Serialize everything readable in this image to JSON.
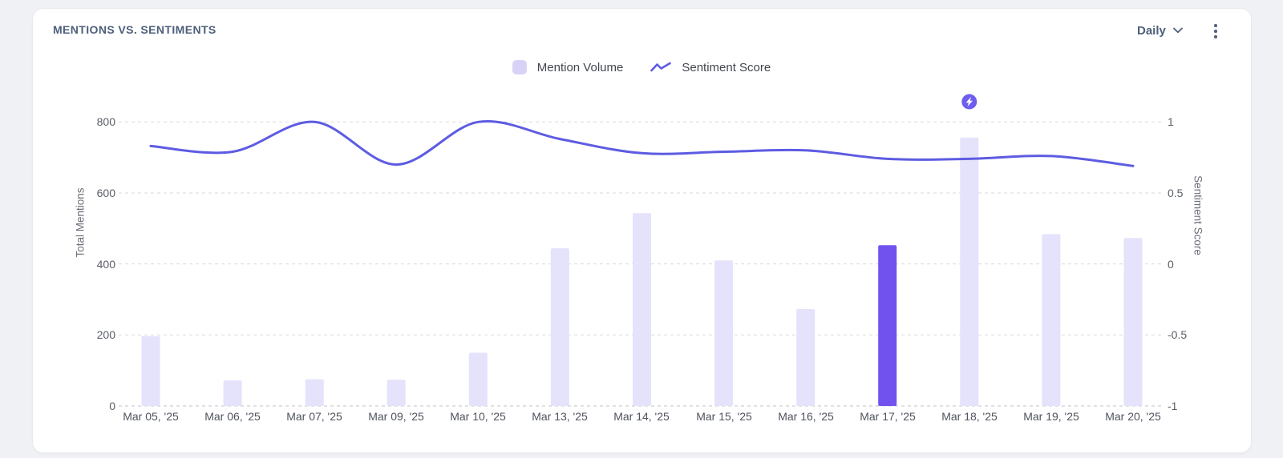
{
  "card": {
    "title": "MENTIONS VS. SENTIMENTS",
    "period_selector": {
      "label": "Daily"
    }
  },
  "legend": {
    "items": [
      {
        "label": "Mention Volume",
        "swatch_color": "#d8d2f6"
      },
      {
        "label": "Sentiment Score",
        "line_color": "#5d5ce2"
      }
    ]
  },
  "chart_data": {
    "type": "combo-bar-line",
    "title": "MENTIONS VS. SENTIMENTS",
    "categories": [
      "Mar 05, '25",
      "Mar 06, '25",
      "Mar 07, '25",
      "Mar 09, '25",
      "Mar 10, '25",
      "Mar 13, '25",
      "Mar 14, '25",
      "Mar 15, '25",
      "Mar 16, '25",
      "Mar 17, '25",
      "Mar 18, '25",
      "Mar 19, '25",
      "Mar 20, '25"
    ],
    "series": [
      {
        "name": "Mention Volume",
        "type": "bar",
        "axis": "left",
        "values": [
          197,
          72,
          75,
          74,
          150,
          444,
          543,
          410,
          273,
          453,
          756,
          484,
          473
        ],
        "color": "#e5e2fb",
        "highlight_index": 9,
        "highlight_color": "#7152ef"
      },
      {
        "name": "Sentiment Score",
        "type": "line",
        "axis": "right",
        "values": [
          0.83,
          0.79,
          1.0,
          0.7,
          1.0,
          0.88,
          0.78,
          0.79,
          0.8,
          0.74,
          0.74,
          0.76,
          0.69
        ],
        "color": "#5d5ce2"
      }
    ],
    "left_axis": {
      "label": "Total Mentions",
      "ticks": [
        "0",
        "200",
        "400",
        "600",
        "800"
      ],
      "range": [
        0,
        800
      ]
    },
    "right_axis": {
      "label": "Sentiment Score",
      "ticks": [
        "-1",
        "-0.5",
        "0",
        "0.5",
        "1"
      ],
      "range": [
        -1,
        1
      ]
    },
    "grid": "dashed-horizontal",
    "legend_position": "top-center",
    "annotation": {
      "icon": "lightning-bolt-icon",
      "category": "Mar 18, '25",
      "category_index": 10,
      "badge_color": "#6d5ef0"
    }
  }
}
